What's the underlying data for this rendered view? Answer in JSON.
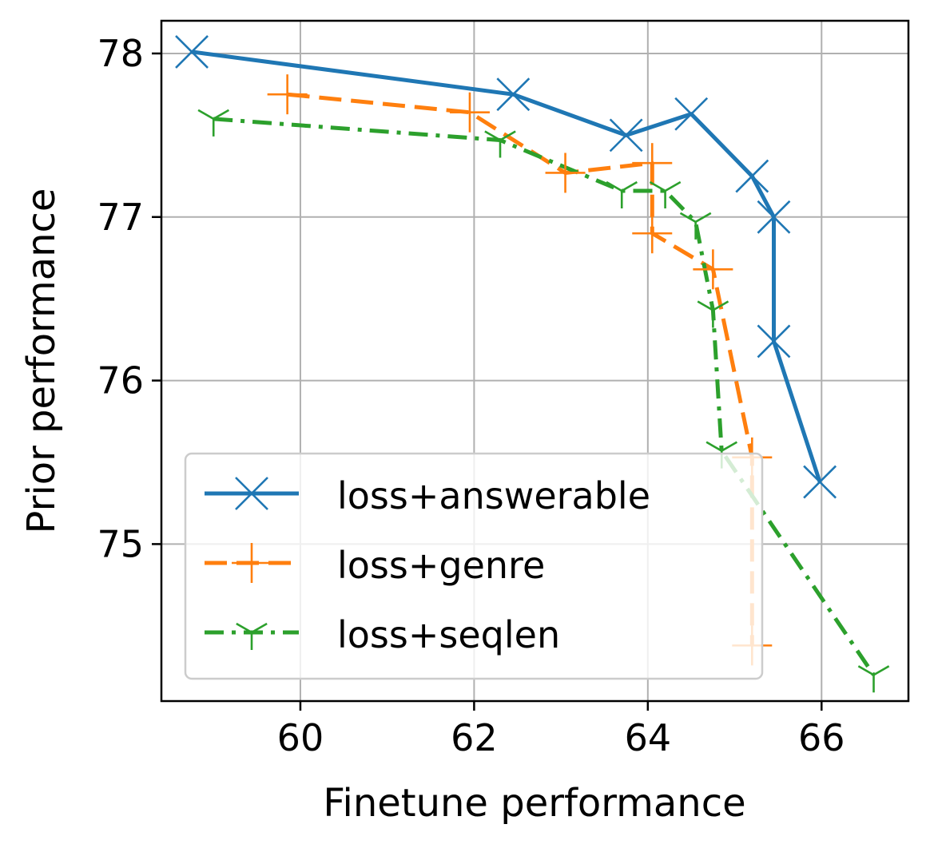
{
  "chart_data": {
    "type": "line",
    "xlabel": "Finetune performance",
    "ylabel": "Prior performance",
    "xlim": [
      58.4,
      67.0
    ],
    "ylim": [
      74.04,
      78.2
    ],
    "xticks": [
      60,
      62,
      64,
      66
    ],
    "yticks": [
      75,
      76,
      77,
      78
    ],
    "xtick_labels": [
      "60",
      "62",
      "64",
      "66"
    ],
    "ytick_labels": [
      "75",
      "76",
      "77",
      "78"
    ],
    "grid": true,
    "legend_position": "lower-left",
    "series": [
      {
        "name": "loss+answerable",
        "color": "#1f77b4",
        "linestyle": "solid",
        "marker": "x",
        "points": [
          [
            58.75,
            78.01
          ],
          [
            62.45,
            77.75
          ],
          [
            63.75,
            77.5
          ],
          [
            64.5,
            77.63
          ],
          [
            65.2,
            77.25
          ],
          [
            65.45,
            77.0
          ],
          [
            65.45,
            76.24
          ],
          [
            65.98,
            75.38
          ]
        ]
      },
      {
        "name": "loss+genre",
        "color": "#ff7f0e",
        "linestyle": "dashed",
        "marker": "plus",
        "points": [
          [
            59.85,
            77.75
          ],
          [
            61.95,
            77.64
          ],
          [
            63.05,
            77.27
          ],
          [
            64.05,
            77.33
          ],
          [
            64.05,
            76.9
          ],
          [
            64.75,
            76.68
          ],
          [
            65.2,
            75.53
          ],
          [
            65.2,
            74.38
          ]
        ]
      },
      {
        "name": "loss+seqlen",
        "color": "#2ca02c",
        "linestyle": "dashdot",
        "marker": "tri_down",
        "points": [
          [
            59.0,
            77.6
          ],
          [
            62.3,
            77.47
          ],
          [
            63.7,
            77.16
          ],
          [
            64.2,
            77.16
          ],
          [
            64.55,
            76.97
          ],
          [
            64.75,
            76.43
          ],
          [
            64.85,
            75.57
          ],
          [
            66.6,
            74.2
          ]
        ]
      }
    ]
  }
}
